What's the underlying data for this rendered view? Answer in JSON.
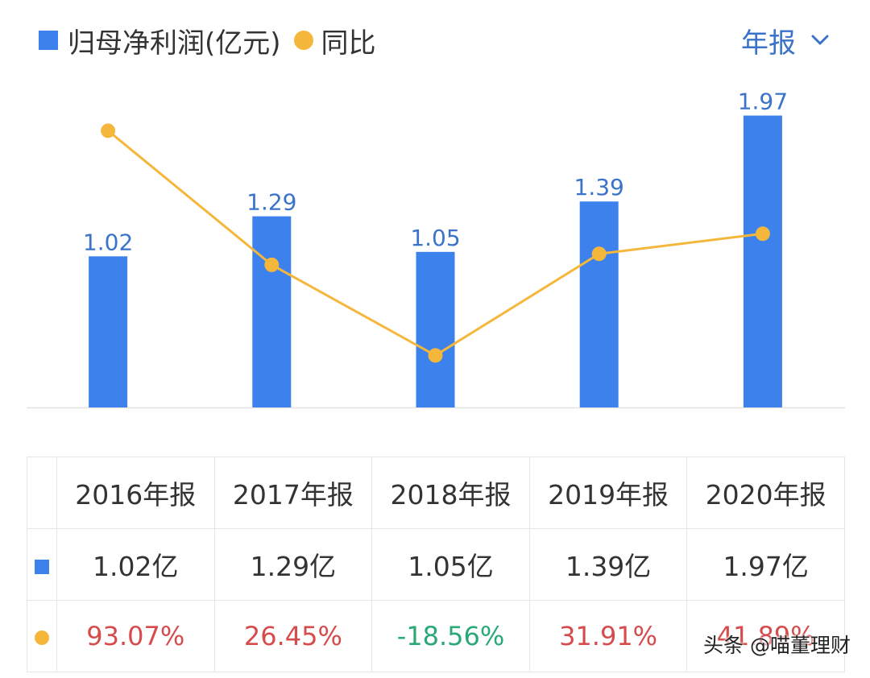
{
  "legend": {
    "bar_label": "归母净利润(亿元)",
    "line_label": "同比"
  },
  "period_select": {
    "label": "年报",
    "icon": "chevron-down-icon"
  },
  "colors": {
    "bar": "#3d82ec",
    "line": "#f5b73b",
    "bar_label": "#3a73c9",
    "positive": "#d64b4b",
    "negative": "#2aa876",
    "accent": "#3a73c9"
  },
  "chart_data": {
    "type": "bar",
    "categories": [
      "2016年报",
      "2017年报",
      "2018年报",
      "2019年报",
      "2020年报"
    ],
    "series": [
      {
        "name": "归母净利润(亿元)",
        "type": "bar",
        "values": [
          1.02,
          1.29,
          1.05,
          1.39,
          1.97
        ],
        "labels": [
          "1.02",
          "1.29",
          "1.05",
          "1.39",
          "1.97"
        ]
      },
      {
        "name": "同比",
        "type": "line",
        "values": [
          93.07,
          26.45,
          -18.56,
          31.91,
          41.89
        ]
      }
    ]
  },
  "table": {
    "headers": [
      "2016年报",
      "2017年报",
      "2018年报",
      "2019年报",
      "2020年报"
    ],
    "net_profit": [
      "1.02亿",
      "1.29亿",
      "1.05亿",
      "1.39亿",
      "1.97亿"
    ],
    "yoy": [
      "93.07%",
      "26.45%",
      "-18.56%",
      "31.91%",
      "41.89%"
    ]
  },
  "watermark": "头条 @喵董理财"
}
